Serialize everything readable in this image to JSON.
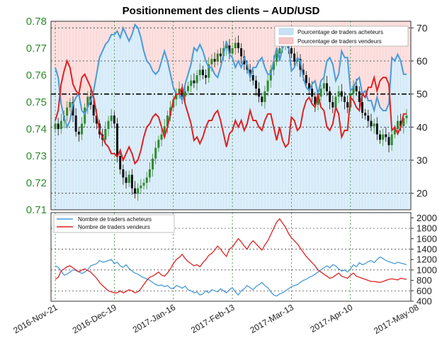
{
  "title": "Positionnement des clients – AUD/USD",
  "chart_data": [
    {
      "type": "candlestick",
      "panel": "price",
      "y_left_ticks": [
        "0.71",
        "0.72",
        "0.73",
        "0.74",
        "0.75",
        "0.76",
        "0.77",
        "0.78"
      ],
      "y_left_range": [
        0.71,
        0.78
      ],
      "y_right_ticks": [
        "20",
        "30",
        "40",
        "50",
        "60",
        "70"
      ],
      "y_right_range": [
        15,
        72
      ],
      "reference_line": 50,
      "grid": true,
      "x_ticks": [
        "2016-Nov-21",
        "2016-Dec-19",
        "2017-Jan-16",
        "2017-Feb-13",
        "2017-Mar-13",
        "2017-Apr-10",
        "2017-May-08"
      ],
      "n_days": 120,
      "legend_position": "top-right",
      "legend": [
        {
          "label": "Pourcentage de traders acheteurs",
          "color": "#c6e2f5"
        },
        {
          "label": "Pourcentage de traders vendeurs",
          "color": "#f7c6c6"
        }
      ],
      "colors": {
        "up": "#2e8b2e",
        "down": "#111111",
        "long": "#4a9ad8",
        "short": "#dd2222",
        "long_fill": "#dceefa",
        "short_fill": "#fde0e0"
      },
      "price_close": [
        0.742,
        0.74,
        0.743,
        0.745,
        0.748,
        0.75,
        0.745,
        0.739,
        0.738,
        0.742,
        0.748,
        0.752,
        0.749,
        0.745,
        0.742,
        0.738,
        0.736,
        0.74,
        0.743,
        0.745,
        0.742,
        0.73,
        0.725,
        0.722,
        0.72,
        0.723,
        0.718,
        0.716,
        0.718,
        0.719,
        0.72,
        0.722,
        0.725,
        0.729,
        0.733,
        0.736,
        0.738,
        0.741,
        0.745,
        0.748,
        0.751,
        0.753,
        0.755,
        0.752,
        0.754,
        0.756,
        0.758,
        0.757,
        0.76,
        0.762,
        0.76,
        0.759,
        0.764,
        0.766,
        0.765,
        0.768,
        0.767,
        0.77,
        0.771,
        0.768,
        0.77,
        0.772,
        0.77,
        0.767,
        0.764,
        0.762,
        0.76,
        0.758,
        0.755,
        0.752,
        0.75,
        0.754,
        0.758,
        0.762,
        0.765,
        0.768,
        0.77,
        0.772,
        0.773,
        0.77,
        0.768,
        0.765,
        0.766,
        0.762,
        0.76,
        0.757,
        0.755,
        0.752,
        0.749,
        0.752,
        0.755,
        0.757,
        0.754,
        0.75,
        0.748,
        0.752,
        0.754,
        0.752,
        0.75,
        0.748,
        0.753,
        0.756,
        0.754,
        0.75,
        0.746,
        0.745,
        0.743,
        0.741,
        0.742,
        0.738,
        0.736,
        0.738,
        0.737,
        0.734,
        0.738,
        0.74,
        0.743,
        0.741,
        0.744,
        0.745
      ],
      "pct_long": [
        58,
        55,
        47,
        43,
        40,
        42,
        47,
        49,
        50,
        45,
        44,
        46,
        48,
        51,
        56,
        61,
        63,
        65,
        66,
        68,
        68,
        69,
        67,
        70,
        68,
        66,
        68,
        71,
        70,
        67,
        63,
        60,
        59,
        57,
        56,
        57,
        60,
        63,
        60,
        56,
        52,
        50,
        50,
        48,
        53,
        56,
        59,
        64,
        63,
        65,
        63,
        60,
        58,
        58,
        56,
        55,
        58,
        62,
        66,
        62,
        61,
        58,
        60,
        58,
        61,
        59,
        55,
        58,
        58,
        60,
        61,
        58,
        56,
        56,
        60,
        64,
        60,
        64,
        66,
        65,
        57,
        58,
        61,
        60,
        55,
        52,
        51,
        53,
        54,
        50,
        54,
        55,
        60,
        61,
        59,
        54,
        56,
        63,
        61,
        61,
        51,
        52,
        54,
        55,
        50,
        51,
        48,
        48,
        45,
        49,
        46,
        45,
        45,
        47,
        61,
        60,
        62,
        60,
        56,
        56
      ],
      "series": [
        {
          "name": "Nombre de traders acheteurs",
          "color": "#4a9ad8"
        },
        {
          "name": "Nombre de traders vendeurs",
          "color": "#dd2222"
        }
      ]
    },
    {
      "type": "line",
      "panel": "counts",
      "y_right_ticks": [
        "400",
        "600",
        "800",
        "1000",
        "1200",
        "1400",
        "1600",
        "1800",
        "2000"
      ],
      "y_range": [
        400,
        2100
      ],
      "legend_position": "top-left",
      "series": [
        {
          "name": "Nombre de traders acheteurs",
          "color": "#4a9ad8",
          "values": [
            1080,
            1050,
            980,
            900,
            920,
            960,
            1000,
            990,
            970,
            930,
            960,
            1000,
            1080,
            1100,
            1120,
            1180,
            1150,
            1160,
            1180,
            1200,
            1120,
            1150,
            1080,
            1050,
            1100,
            1030,
            980,
            940,
            920,
            880,
            850,
            830,
            800,
            760,
            720,
            700,
            710,
            680,
            700,
            650,
            640,
            700,
            680,
            650,
            690,
            620,
            600,
            560,
            580,
            520,
            540,
            600,
            560,
            620,
            600,
            580,
            640,
            600,
            560,
            620,
            660,
            580,
            520,
            600,
            640,
            700,
            660,
            620,
            680,
            720,
            760,
            700,
            660,
            580,
            520,
            500,
            540,
            560,
            600,
            640,
            680,
            700,
            720,
            760,
            800,
            820,
            860,
            880,
            920,
            960,
            1000,
            1040,
            1080,
            1040,
            1100,
            1080,
            1020,
            980,
            1000,
            960,
            1020,
            1100,
            1060,
            1140,
            1100,
            1120,
            1160,
            1180,
            1140,
            1200,
            1250,
            1220,
            1180,
            1160,
            1140,
            1120,
            1150,
            1130,
            1120,
            1100
          ]
        },
        {
          "name": "Nombre de traders vendeurs",
          "color": "#dd2222",
          "values": [
            820,
            860,
            980,
            1020,
            1060,
            1080,
            1040,
            1000,
            960,
            1000,
            1020,
            990,
            960,
            900,
            840,
            760,
            700,
            650,
            600,
            580,
            560,
            560,
            600,
            560,
            590,
            620,
            600,
            560,
            580,
            640,
            720,
            800,
            860,
            880,
            920,
            960,
            900,
            880,
            940,
            1020,
            1120,
            1200,
            1240,
            1300,
            1220,
            1160,
            1120,
            1080,
            1100,
            1060,
            1140,
            1200,
            1280,
            1320,
            1380,
            1460,
            1400,
            1320,
            1260,
            1400,
            1440,
            1520,
            1600,
            1540,
            1460,
            1400,
            1500,
            1560,
            1500,
            1440,
            1380,
            1480,
            1560,
            1680,
            1800,
            1920,
            1980,
            1900,
            1820,
            1700,
            1620,
            1560,
            1500,
            1420,
            1340,
            1260,
            1200,
            1140,
            1080,
            1000,
            960,
            920,
            880,
            840,
            860,
            900,
            940,
            880,
            860,
            840,
            900,
            940,
            880,
            860,
            840,
            820,
            800,
            780,
            780,
            770,
            760,
            780,
            800,
            820,
            830,
            820,
            810,
            840,
            830,
            820
          ]
        }
      ]
    }
  ]
}
